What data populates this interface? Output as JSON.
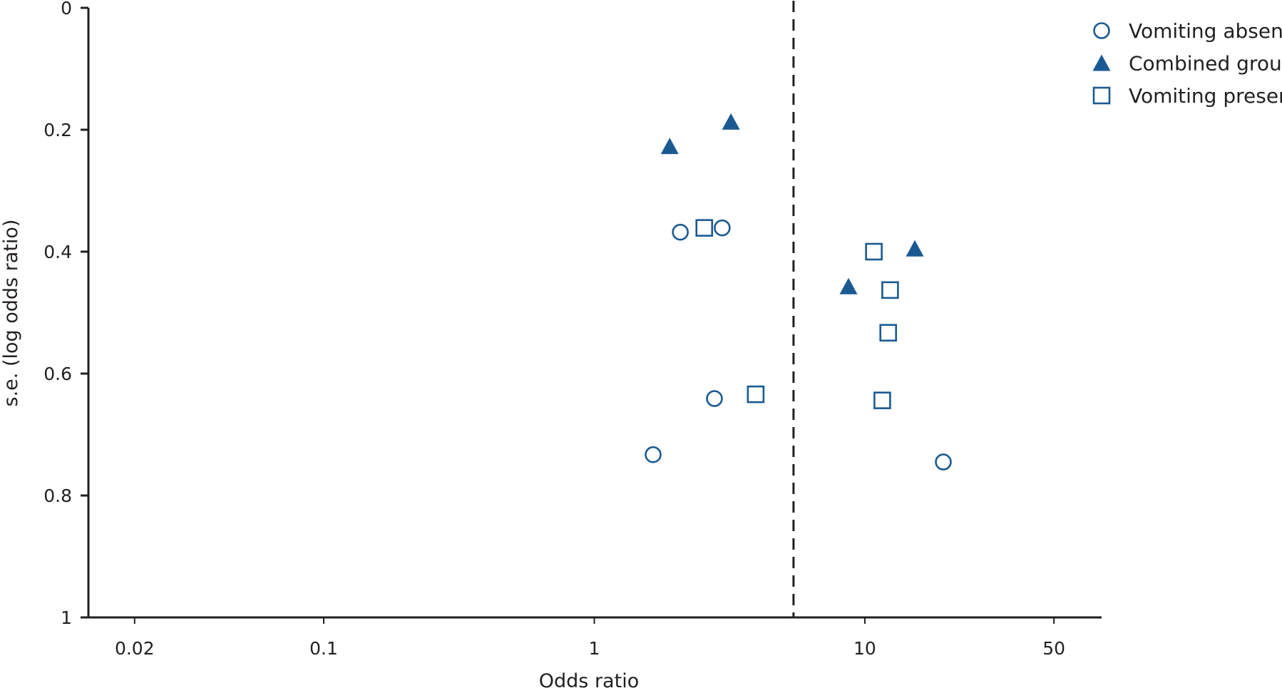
{
  "chart_data": {
    "type": "scatter",
    "xlabel": "Odds ratio",
    "ylabel": "s.e. (log odds ratio)",
    "x_scale": "log",
    "y_inverted": true,
    "xlim": [
      0.0135,
      75
    ],
    "ylim": [
      0,
      1
    ],
    "x_ticks": [
      {
        "value": 0.02,
        "label": "0.02"
      },
      {
        "value": 0.1,
        "label": "0.1"
      },
      {
        "value": 1,
        "label": "1"
      },
      {
        "value": 10,
        "label": "10"
      },
      {
        "value": 50,
        "label": "50"
      }
    ],
    "y_ticks": [
      {
        "value": 0,
        "label": "0"
      },
      {
        "value": 0.2,
        "label": "0.2"
      },
      {
        "value": 0.4,
        "label": "0.4"
      },
      {
        "value": 0.6,
        "label": "0.6"
      },
      {
        "value": 0.8,
        "label": "0.8"
      },
      {
        "value": 1,
        "label": "1"
      }
    ],
    "reference_line": {
      "x": 5.45,
      "style": "dashed"
    },
    "grid": false,
    "legend_position": "top-right",
    "color": "#1a5a92",
    "series": [
      {
        "name": "Vomiting absent",
        "marker": "circle-open",
        "points": [
          {
            "x": 2.08,
            "y": 0.368
          },
          {
            "x": 2.97,
            "y": 0.361
          },
          {
            "x": 2.78,
            "y": 0.641
          },
          {
            "x": 1.65,
            "y": 0.733
          },
          {
            "x": 19.5,
            "y": 0.745
          }
        ]
      },
      {
        "name": "Combined group",
        "marker": "triangle-filled",
        "points": [
          {
            "x": 1.9,
            "y": 0.227
          },
          {
            "x": 3.2,
            "y": 0.187
          },
          {
            "x": 8.7,
            "y": 0.457
          },
          {
            "x": 15.3,
            "y": 0.395
          }
        ]
      },
      {
        "name": "Vomiting present",
        "marker": "square-open",
        "points": [
          {
            "x": 2.55,
            "y": 0.361
          },
          {
            "x": 3.95,
            "y": 0.634
          },
          {
            "x": 10.8,
            "y": 0.4
          },
          {
            "x": 12.4,
            "y": 0.463
          },
          {
            "x": 12.2,
            "y": 0.533
          },
          {
            "x": 11.6,
            "y": 0.644
          }
        ]
      }
    ]
  }
}
